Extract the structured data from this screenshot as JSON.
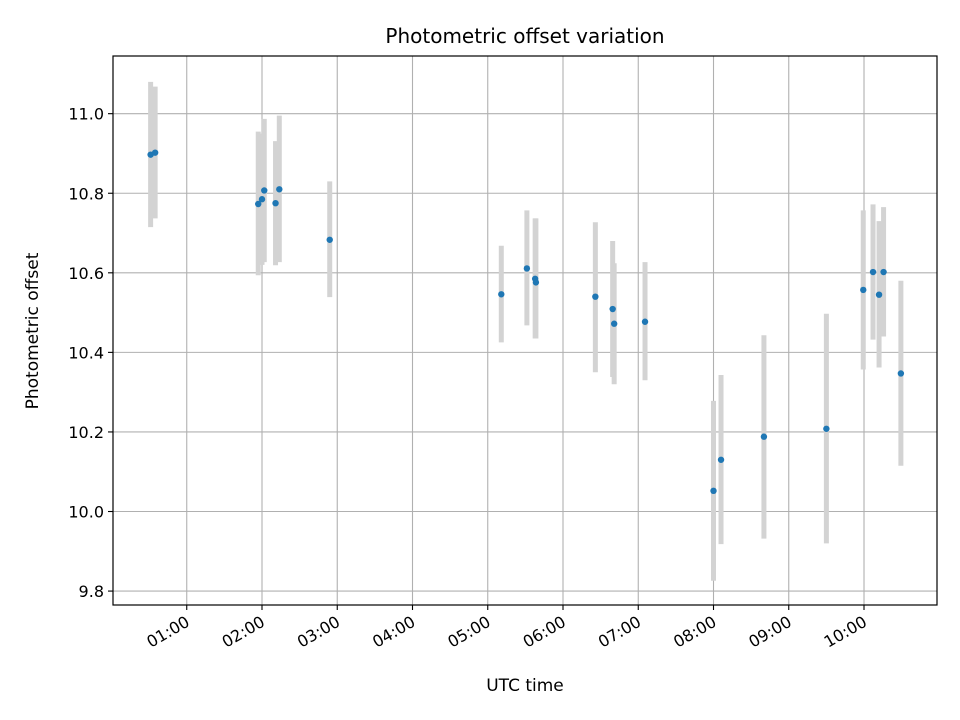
{
  "chart_data": {
    "type": "scatter",
    "title": "Photometric offset variation",
    "xlabel": "UTC time",
    "ylabel": "Photometric offset",
    "x_unit": "hours UTC",
    "xlim": [
      0.02,
      10.97
    ],
    "ylim": [
      9.765,
      11.145
    ],
    "grid": true,
    "x_ticks": [
      {
        "value": 1,
        "label": "01:00"
      },
      {
        "value": 2,
        "label": "02:00"
      },
      {
        "value": 3,
        "label": "03:00"
      },
      {
        "value": 4,
        "label": "04:00"
      },
      {
        "value": 5,
        "label": "05:00"
      },
      {
        "value": 6,
        "label": "06:00"
      },
      {
        "value": 7,
        "label": "07:00"
      },
      {
        "value": 8,
        "label": "08:00"
      },
      {
        "value": 9,
        "label": "09:00"
      },
      {
        "value": 10,
        "label": "10:00"
      }
    ],
    "y_ticks": [
      {
        "value": 9.8,
        "label": "9.8"
      },
      {
        "value": 10.0,
        "label": "10.0"
      },
      {
        "value": 10.2,
        "label": "10.2"
      },
      {
        "value": 10.4,
        "label": "10.4"
      },
      {
        "value": 10.6,
        "label": "10.6"
      },
      {
        "value": 10.8,
        "label": "10.8"
      },
      {
        "value": 11.0,
        "label": "11.0"
      }
    ],
    "point_color": "#1f77b4",
    "errorbar_color": "#d3d3d3",
    "series": [
      {
        "points": [
          {
            "x": 0.52,
            "y": 10.897,
            "err_low": 10.715,
            "err_high": 11.08
          },
          {
            "x": 0.58,
            "y": 10.902,
            "err_low": 10.737,
            "err_high": 11.068
          },
          {
            "x": 1.95,
            "y": 10.773,
            "err_low": 10.594,
            "err_high": 10.955
          },
          {
            "x": 2.0,
            "y": 10.785,
            "err_low": 10.62,
            "err_high": 10.95
          },
          {
            "x": 2.03,
            "y": 10.807,
            "err_low": 10.627,
            "err_high": 10.987
          },
          {
            "x": 2.18,
            "y": 10.775,
            "err_low": 10.619,
            "err_high": 10.931
          },
          {
            "x": 2.23,
            "y": 10.81,
            "err_low": 10.627,
            "err_high": 10.995
          },
          {
            "x": 2.9,
            "y": 10.683,
            "err_low": 10.539,
            "err_high": 10.83
          },
          {
            "x": 5.18,
            "y": 10.546,
            "err_low": 10.425,
            "err_high": 10.668
          },
          {
            "x": 5.52,
            "y": 10.611,
            "err_low": 10.468,
            "err_high": 10.757
          },
          {
            "x": 5.63,
            "y": 10.585,
            "err_low": 10.435,
            "err_high": 10.737
          },
          {
            "x": 5.64,
            "y": 10.576,
            "err_low": 10.435,
            "err_high": 10.737
          },
          {
            "x": 6.43,
            "y": 10.54,
            "err_low": 10.35,
            "err_high": 10.727
          },
          {
            "x": 6.66,
            "y": 10.509,
            "err_low": 10.338,
            "err_high": 10.68
          },
          {
            "x": 6.68,
            "y": 10.472,
            "err_low": 10.32,
            "err_high": 10.624
          },
          {
            "x": 7.09,
            "y": 10.477,
            "err_low": 10.33,
            "err_high": 10.627
          },
          {
            "x": 8.0,
            "y": 10.052,
            "err_low": 9.826,
            "err_high": 10.278
          },
          {
            "x": 8.1,
            "y": 10.13,
            "err_low": 9.918,
            "err_high": 10.343
          },
          {
            "x": 8.67,
            "y": 10.188,
            "err_low": 9.932,
            "err_high": 10.443
          },
          {
            "x": 9.5,
            "y": 10.208,
            "err_low": 9.92,
            "err_high": 10.497
          },
          {
            "x": 9.99,
            "y": 10.557,
            "err_low": 10.357,
            "err_high": 10.757
          },
          {
            "x": 10.12,
            "y": 10.602,
            "err_low": 10.432,
            "err_high": 10.772
          },
          {
            "x": 10.2,
            "y": 10.545,
            "err_low": 10.362,
            "err_high": 10.73
          },
          {
            "x": 10.26,
            "y": 10.602,
            "err_low": 10.44,
            "err_high": 10.765
          },
          {
            "x": 10.49,
            "y": 10.347,
            "err_low": 10.115,
            "err_high": 10.58
          }
        ]
      }
    ]
  }
}
